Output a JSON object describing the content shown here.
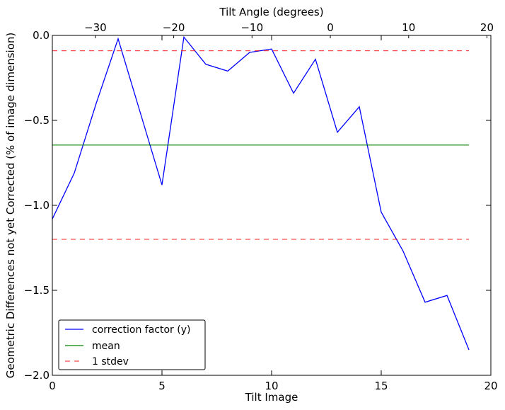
{
  "chart_data": {
    "type": "line",
    "xlabel": "Tilt Image",
    "ylabel": "Geometric Differences not yet Corrected (% of image dimension)",
    "top_xlabel": "Tilt Angle (degrees)",
    "xlim": [
      0,
      20
    ],
    "ylim": [
      -2.0,
      0.0
    ],
    "top_xlim": [
      -35.5,
      20.5
    ],
    "x_ticks": [
      0,
      5,
      10,
      15,
      20
    ],
    "x_tick_labels": [
      "0",
      "5",
      "10",
      "15",
      "20"
    ],
    "y_ticks": [
      0.0,
      -0.5,
      -1.0,
      -1.5,
      -2.0
    ],
    "y_tick_labels": [
      "0.0",
      "−0.5",
      "−1.0",
      "−1.5",
      "−2.0"
    ],
    "top_ticks": [
      -30,
      -20,
      -10,
      0,
      10,
      20
    ],
    "top_tick_labels": [
      "−30",
      "−20",
      "−10",
      "0",
      "10",
      "20"
    ],
    "grid": false,
    "legend_position": "lower-left",
    "series": [
      {
        "name": "correction factor (y)",
        "color": "#0000ff",
        "style": "solid",
        "x": [
          0,
          1,
          2,
          3,
          4,
          5,
          6,
          7,
          8,
          9,
          10,
          11,
          12,
          13,
          14,
          15,
          16,
          17,
          18,
          19
        ],
        "y": [
          -1.08,
          -0.81,
          -0.4,
          -0.02,
          -0.45,
          -0.88,
          -0.01,
          -0.17,
          -0.21,
          -0.1,
          -0.08,
          -0.34,
          -0.14,
          -0.57,
          -0.42,
          -1.04,
          -1.27,
          -1.57,
          -1.53,
          -1.85
        ]
      },
      {
        "name": "mean",
        "color": "#008000",
        "style": "solid",
        "x": [
          0,
          19
        ],
        "y": [
          -0.645,
          -0.645
        ]
      },
      {
        "name": "1 stdev",
        "color": "#ff0000",
        "style": "dashed",
        "x": [
          0,
          19
        ],
        "y": [
          -0.09,
          -0.09
        ]
      },
      {
        "name": "",
        "color": "#ff0000",
        "style": "dashed",
        "x": [
          0,
          19
        ],
        "y": [
          -1.2,
          -1.2
        ]
      }
    ],
    "legend": [
      "correction factor (y)",
      "mean",
      "1 stdev"
    ]
  }
}
